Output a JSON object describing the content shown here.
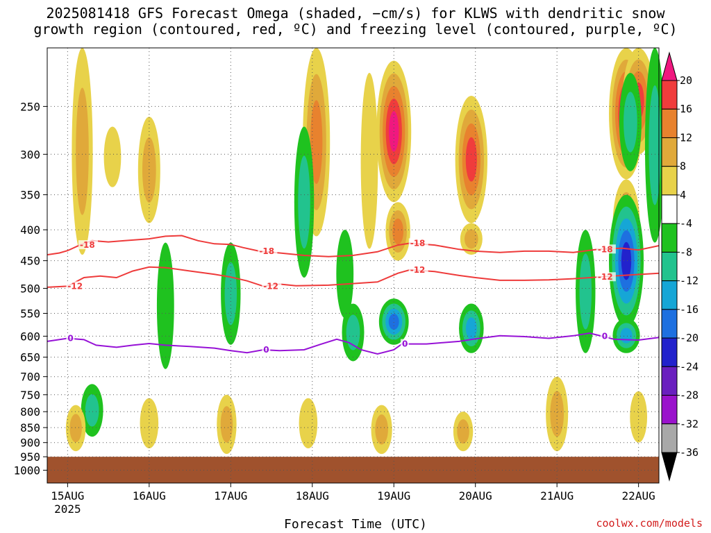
{
  "chart_data": {
    "type": "time-height cross section",
    "title_line1": "2025081418 GFS Forecast Omega (shaded, −cm/s) for KLWS with dendritic snow",
    "title_line2": "growth region (contoured, red, ºC) and freezing level (contoured, purple, ºC)",
    "xlabel": "Forecast Time (UTC)",
    "credit": "coolwx.com/models",
    "y_axis": {
      "scale": "pressure (log)",
      "ticks": [
        "250",
        "300",
        "350",
        "400",
        "450",
        "500",
        "550",
        "600",
        "650",
        "700",
        "750",
        "800",
        "850",
        "900",
        "950",
        "1000"
      ],
      "range_hpa": [
        200,
        1050
      ]
    },
    "x_axis": {
      "ticks": [
        {
          "label": "15AUG",
          "sublabel": "2025"
        },
        {
          "label": "16AUG",
          "sublabel": ""
        },
        {
          "label": "17AUG",
          "sublabel": ""
        },
        {
          "label": "18AUG",
          "sublabel": ""
        },
        {
          "label": "19AUG",
          "sublabel": ""
        },
        {
          "label": "20AUG",
          "sublabel": ""
        },
        {
          "label": "21AUG",
          "sublabel": ""
        },
        {
          "label": "22AUG",
          "sublabel": ""
        }
      ],
      "range_days_from_15aug00": [
        -0.25,
        7.25
      ]
    },
    "colorbar": {
      "labels": [
        "20",
        "16",
        "12",
        "8",
        "4",
        "-4",
        "-8",
        "-12",
        "-16",
        "-20",
        "-24",
        "-28",
        "-32",
        "-36"
      ],
      "colors": [
        "#f0187f",
        "#f03c3c",
        "#e8822e",
        "#e0a93a",
        "#e8d24a",
        "#ffffff",
        "#1fc21f",
        "#22c38e",
        "#16a6d6",
        "#1e70e0",
        "#2222cc",
        "#6a1fbf",
        "#9a12cc",
        "#a8a8a8",
        "#000000"
      ],
      "grid": "dotted",
      "ground_color": "#a0522d"
    },
    "contours": {
      "dgz_minus18": {
        "label": "-18",
        "color": "#ee3a3a",
        "points": [
          [
            -0.25,
            440
          ],
          [
            -0.1,
            437
          ],
          [
            0,
            433
          ],
          [
            0.15,
            424
          ],
          [
            0.3,
            417
          ],
          [
            0.5,
            419
          ],
          [
            0.7,
            417
          ],
          [
            1,
            414
          ],
          [
            1.2,
            410
          ],
          [
            1.4,
            409
          ],
          [
            1.6,
            417
          ],
          [
            1.8,
            422
          ],
          [
            2,
            423
          ],
          [
            2.15,
            428
          ],
          [
            2.35,
            434
          ],
          [
            2.6,
            437
          ],
          [
            2.9,
            441
          ],
          [
            3.2,
            443
          ],
          [
            3.5,
            441
          ],
          [
            3.8,
            435
          ],
          [
            4.05,
            424
          ],
          [
            4.2,
            421
          ],
          [
            4.5,
            424
          ],
          [
            4.8,
            431
          ],
          [
            5,
            434
          ],
          [
            5.3,
            436
          ],
          [
            5.6,
            434
          ],
          [
            5.9,
            434
          ],
          [
            6.2,
            436
          ],
          [
            6.5,
            431
          ],
          [
            6.8,
            429
          ],
          [
            7,
            432
          ],
          [
            7.25,
            425
          ]
        ]
      },
      "dgz_minus12": {
        "label": "-12",
        "color": "#ee3a3a",
        "points": [
          [
            -0.25,
            498
          ],
          [
            0,
            496
          ],
          [
            0.2,
            480
          ],
          [
            0.4,
            477
          ],
          [
            0.6,
            480
          ],
          [
            0.8,
            468
          ],
          [
            1,
            461
          ],
          [
            1.2,
            462
          ],
          [
            1.5,
            468
          ],
          [
            1.8,
            474
          ],
          [
            2,
            479
          ],
          [
            2.2,
            486
          ],
          [
            2.4,
            496
          ],
          [
            2.6,
            492
          ],
          [
            2.8,
            495
          ],
          [
            3.2,
            494
          ],
          [
            3.5,
            491
          ],
          [
            3.8,
            488
          ],
          [
            4.05,
            472
          ],
          [
            4.2,
            466
          ],
          [
            4.5,
            469
          ],
          [
            4.8,
            476
          ],
          [
            5,
            480
          ],
          [
            5.3,
            485
          ],
          [
            5.6,
            485
          ],
          [
            5.9,
            484
          ],
          [
            6.2,
            482
          ],
          [
            6.5,
            479
          ],
          [
            6.8,
            476
          ],
          [
            7.25,
            472
          ]
        ]
      },
      "freezing_level": {
        "label": "0",
        "color": "#9611d6",
        "points": [
          [
            -0.25,
            612
          ],
          [
            0,
            605
          ],
          [
            0.2,
            608
          ],
          [
            0.35,
            621
          ],
          [
            0.6,
            626
          ],
          [
            0.8,
            621
          ],
          [
            1,
            617
          ],
          [
            1.2,
            621
          ],
          [
            1.5,
            624
          ],
          [
            1.8,
            628
          ],
          [
            2,
            634
          ],
          [
            2.2,
            639
          ],
          [
            2.4,
            632
          ],
          [
            2.6,
            634
          ],
          [
            2.9,
            632
          ],
          [
            3.1,
            619
          ],
          [
            3.3,
            607
          ],
          [
            3.45,
            615
          ],
          [
            3.6,
            632
          ],
          [
            3.8,
            642
          ],
          [
            4,
            632
          ],
          [
            4.1,
            618
          ],
          [
            4.4,
            618
          ],
          [
            4.6,
            615
          ],
          [
            4.8,
            612
          ],
          [
            5,
            606
          ],
          [
            5.3,
            599
          ],
          [
            5.6,
            601
          ],
          [
            5.9,
            605
          ],
          [
            6.2,
            599
          ],
          [
            6.4,
            593
          ],
          [
            6.55,
            600
          ],
          [
            6.7,
            607
          ],
          [
            7,
            609
          ],
          [
            7.25,
            603
          ]
        ]
      }
    },
    "omega_features": [
      {
        "t": 0.18,
        "p0": 200,
        "p1": 440,
        "v": 9
      },
      {
        "t": 1.0,
        "p0": 260,
        "p1": 390,
        "v": 10
      },
      {
        "t": 0.55,
        "p0": 270,
        "p1": 340,
        "v": 6
      },
      {
        "t": 3.05,
        "p0": 200,
        "p1": 410,
        "v": 14
      },
      {
        "t": 4.0,
        "p0": 210,
        "p1": 360,
        "v": 20
      },
      {
        "t": 4.05,
        "p0": 360,
        "p1": 450,
        "v": 12
      },
      {
        "t": 4.95,
        "p0": 240,
        "p1": 390,
        "v": 18
      },
      {
        "t": 4.95,
        "p0": 390,
        "p1": 440,
        "v": 10
      },
      {
        "t": 6.85,
        "p0": 200,
        "p1": 330,
        "v": 20
      },
      {
        "t": 6.85,
        "p0": 330,
        "p1": 470,
        "v": 14
      },
      {
        "t": 7.0,
        "p0": 200,
        "p1": 300,
        "v": 18
      },
      {
        "t": 6.9,
        "p0": 380,
        "p1": 560,
        "v": 10
      },
      {
        "t": 3.7,
        "p0": 220,
        "p1": 430,
        "v": 6
      },
      {
        "t": 3.5,
        "p0": 530,
        "p1": 660,
        "v": -10
      },
      {
        "t": 4.0,
        "p0": 520,
        "p1": 620,
        "v": -16
      },
      {
        "t": 4.95,
        "p0": 530,
        "p1": 640,
        "v": -12
      },
      {
        "t": 6.85,
        "p0": 350,
        "p1": 580,
        "v": -20
      },
      {
        "t": 6.85,
        "p0": 560,
        "p1": 640,
        "v": -14
      },
      {
        "t": 7.2,
        "p0": 200,
        "p1": 420,
        "v": -8
      },
      {
        "t": 6.9,
        "p0": 220,
        "p1": 320,
        "v": -10
      },
      {
        "t": 6.35,
        "p0": 400,
        "p1": 640,
        "v": -8
      },
      {
        "t": 2.0,
        "p0": 420,
        "p1": 620,
        "v": -8
      },
      {
        "t": 2.9,
        "p0": 270,
        "p1": 480,
        "v": -8
      },
      {
        "t": 3.4,
        "p0": 400,
        "p1": 560,
        "v": -6
      },
      {
        "t": 1.2,
        "p0": 420,
        "p1": 680,
        "v": -6
      },
      {
        "t": 0.3,
        "p0": 720,
        "p1": 880,
        "v": -10
      },
      {
        "t": 0.1,
        "p0": 780,
        "p1": 930,
        "v": 8
      },
      {
        "t": 1.0,
        "p0": 760,
        "p1": 920,
        "v": 7
      },
      {
        "t": 1.95,
        "p0": 750,
        "p1": 940,
        "v": 8
      },
      {
        "t": 2.95,
        "p0": 760,
        "p1": 920,
        "v": 7
      },
      {
        "t": 3.85,
        "p0": 780,
        "p1": 940,
        "v": 9
      },
      {
        "t": 4.85,
        "p0": 800,
        "p1": 930,
        "v": 8
      },
      {
        "t": 6.0,
        "p0": 700,
        "p1": 930,
        "v": 10
      },
      {
        "t": 7.0,
        "p0": 740,
        "p1": 900,
        "v": 6
      }
    ]
  }
}
